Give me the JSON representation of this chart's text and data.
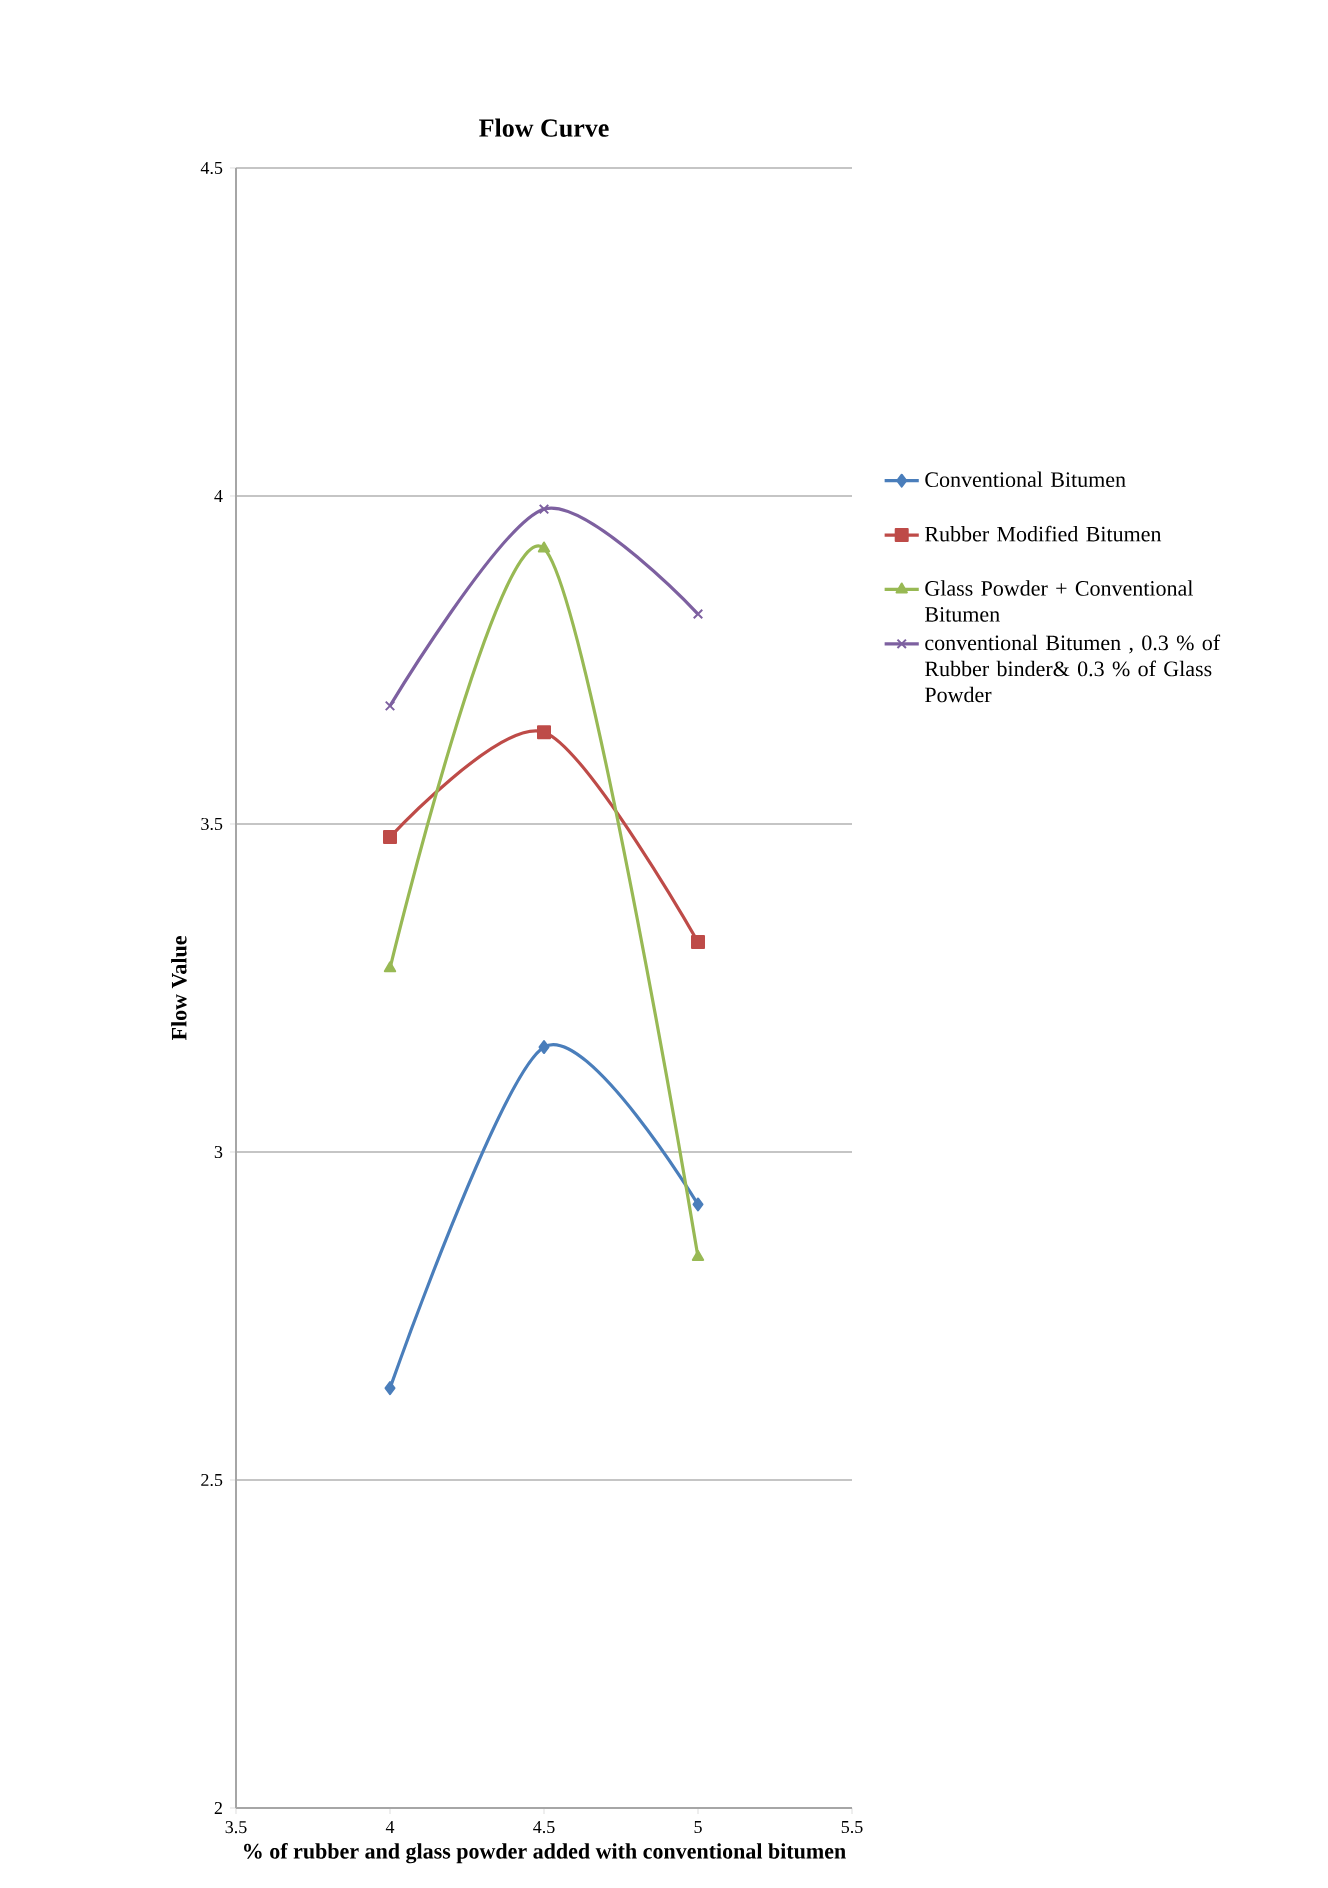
{
  "chart_data": {
    "type": "line",
    "title": "Flow Curve",
    "xlabel": "% of rubber and glass powder added with conventional bitumen",
    "ylabel": "Flow Value",
    "xlim": [
      3.5,
      5.5
    ],
    "xticks": [
      3.5,
      4,
      4.5,
      5,
      5.5
    ],
    "ylim": [
      2,
      4.5
    ],
    "yticks": [
      2,
      2.5,
      3,
      3.5,
      4,
      4.5
    ],
    "grid": "y",
    "legend": "right",
    "x": [
      4,
      4.5,
      5
    ],
    "series": [
      {
        "name": "Conventional Bitumen",
        "color": "#4a7ebb",
        "marker": "diamond",
        "values": [
          2.64,
          3.16,
          2.92
        ]
      },
      {
        "name": "Rubber Modified Bitumen",
        "color": "#be4b48",
        "marker": "square",
        "values": [
          3.48,
          3.64,
          3.32
        ]
      },
      {
        "name": "Glass Powder + Conventional Bitumen",
        "color": "#98b954",
        "marker": "triangle",
        "values": [
          3.28,
          3.92,
          2.84
        ]
      },
      {
        "name": "conventional Bitumen , 0.3 % of Rubber binder& 0.3 % of Glass Powder",
        "color": "#7d60a0",
        "marker": "cross",
        "values": [
          3.68,
          3.98,
          3.82
        ]
      }
    ]
  }
}
